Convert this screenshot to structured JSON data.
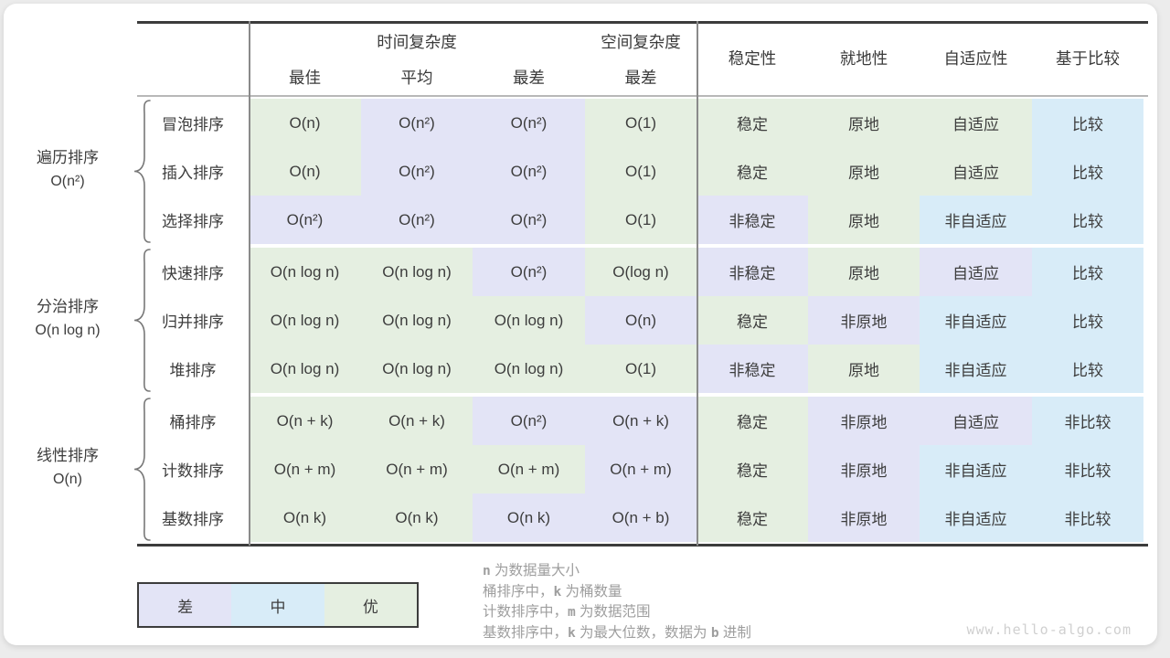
{
  "chart_data": {
    "type": "table",
    "header": {
      "time_complexity": "时间复杂度",
      "space_complexity": "空间复杂度",
      "time_sub": [
        "最佳",
        "平均",
        "最差"
      ],
      "space_sub": [
        "最差"
      ],
      "attributes": [
        "稳定性",
        "就地性",
        "自适应性",
        "基于比较"
      ]
    },
    "levels": {
      "good": "#e5efe1",
      "medium": "#d8ecf8",
      "bad": "#e3e4f6"
    },
    "groups": [
      {
        "category": "遍历排序",
        "category_complexity": "O(n²)",
        "rows": [
          {
            "name": "冒泡排序",
            "cells": [
              [
                "O(n)",
                "good"
              ],
              [
                "O(n²)",
                "bad"
              ],
              [
                "O(n²)",
                "bad"
              ],
              [
                "O(1)",
                "good"
              ],
              [
                "稳定",
                "good"
              ],
              [
                "原地",
                "good"
              ],
              [
                "自适应",
                "good"
              ],
              [
                "比较",
                "medium"
              ]
            ]
          },
          {
            "name": "插入排序",
            "cells": [
              [
                "O(n)",
                "good"
              ],
              [
                "O(n²)",
                "bad"
              ],
              [
                "O(n²)",
                "bad"
              ],
              [
                "O(1)",
                "good"
              ],
              [
                "稳定",
                "good"
              ],
              [
                "原地",
                "good"
              ],
              [
                "自适应",
                "good"
              ],
              [
                "比较",
                "medium"
              ]
            ]
          },
          {
            "name": "选择排序",
            "cells": [
              [
                "O(n²)",
                "bad"
              ],
              [
                "O(n²)",
                "bad"
              ],
              [
                "O(n²)",
                "bad"
              ],
              [
                "O(1)",
                "good"
              ],
              [
                "非稳定",
                "bad"
              ],
              [
                "原地",
                "good"
              ],
              [
                "非自适应",
                "medium"
              ],
              [
                "比较",
                "medium"
              ]
            ]
          }
        ]
      },
      {
        "category": "分治排序",
        "category_complexity": "O(n log n)",
        "rows": [
          {
            "name": "快速排序",
            "cells": [
              [
                "O(n log n)",
                "good"
              ],
              [
                "O(n log n)",
                "good"
              ],
              [
                "O(n²)",
                "bad"
              ],
              [
                "O(log n)",
                "good"
              ],
              [
                "非稳定",
                "bad"
              ],
              [
                "原地",
                "good"
              ],
              [
                "自适应",
                "bad"
              ],
              [
                "比较",
                "medium"
              ]
            ]
          },
          {
            "name": "归并排序",
            "cells": [
              [
                "O(n log n)",
                "good"
              ],
              [
                "O(n log n)",
                "good"
              ],
              [
                "O(n log n)",
                "good"
              ],
              [
                "O(n)",
                "bad"
              ],
              [
                "稳定",
                "good"
              ],
              [
                "非原地",
                "bad"
              ],
              [
                "非自适应",
                "medium"
              ],
              [
                "比较",
                "medium"
              ]
            ]
          },
          {
            "name": "堆排序",
            "cells": [
              [
                "O(n log n)",
                "good"
              ],
              [
                "O(n log n)",
                "good"
              ],
              [
                "O(n log n)",
                "good"
              ],
              [
                "O(1)",
                "good"
              ],
              [
                "非稳定",
                "bad"
              ],
              [
                "原地",
                "good"
              ],
              [
                "非自适应",
                "medium"
              ],
              [
                "比较",
                "medium"
              ]
            ]
          }
        ]
      },
      {
        "category": "线性排序",
        "category_complexity": "O(n)",
        "rows": [
          {
            "name": "桶排序",
            "cells": [
              [
                "O(n + k)",
                "good"
              ],
              [
                "O(n + k)",
                "good"
              ],
              [
                "O(n²)",
                "bad"
              ],
              [
                "O(n + k)",
                "bad"
              ],
              [
                "稳定",
                "good"
              ],
              [
                "非原地",
                "bad"
              ],
              [
                "自适应",
                "bad"
              ],
              [
                "非比较",
                "medium"
              ]
            ]
          },
          {
            "name": "计数排序",
            "cells": [
              [
                "O(n + m)",
                "good"
              ],
              [
                "O(n + m)",
                "good"
              ],
              [
                "O(n + m)",
                "good"
              ],
              [
                "O(n + m)",
                "bad"
              ],
              [
                "稳定",
                "good"
              ],
              [
                "非原地",
                "bad"
              ],
              [
                "非自适应",
                "medium"
              ],
              [
                "非比较",
                "medium"
              ]
            ]
          },
          {
            "name": "基数排序",
            "cells": [
              [
                "O(n k)",
                "good"
              ],
              [
                "O(n k)",
                "good"
              ],
              [
                "O(n k)",
                "bad"
              ],
              [
                "O(n + b)",
                "bad"
              ],
              [
                "稳定",
                "good"
              ],
              [
                "非原地",
                "bad"
              ],
              [
                "非自适应",
                "medium"
              ],
              [
                "非比较",
                "medium"
              ]
            ]
          }
        ]
      }
    ],
    "legend": [
      {
        "label": "差",
        "level": "bad"
      },
      {
        "label": "中",
        "level": "medium"
      },
      {
        "label": "优",
        "level": "good"
      }
    ],
    "notes": [
      [
        {
          "text": "n",
          "mono": true
        },
        {
          "text": " 为数据量大小",
          "mono": false
        }
      ],
      [
        {
          "text": "桶排序中，",
          "mono": false
        },
        {
          "text": "k",
          "mono": true
        },
        {
          "text": " 为桶数量",
          "mono": false
        }
      ],
      [
        {
          "text": "计数排序中，",
          "mono": false
        },
        {
          "text": "m",
          "mono": true
        },
        {
          "text": " 为数据范围",
          "mono": false
        }
      ],
      [
        {
          "text": "基数排序中，",
          "mono": false
        },
        {
          "text": "k",
          "mono": true
        },
        {
          "text": " 为最大位数，数据为 ",
          "mono": false
        },
        {
          "text": "b",
          "mono": true
        },
        {
          "text": " 进制",
          "mono": false
        }
      ]
    ],
    "watermark": "www.hello-algo.com"
  }
}
